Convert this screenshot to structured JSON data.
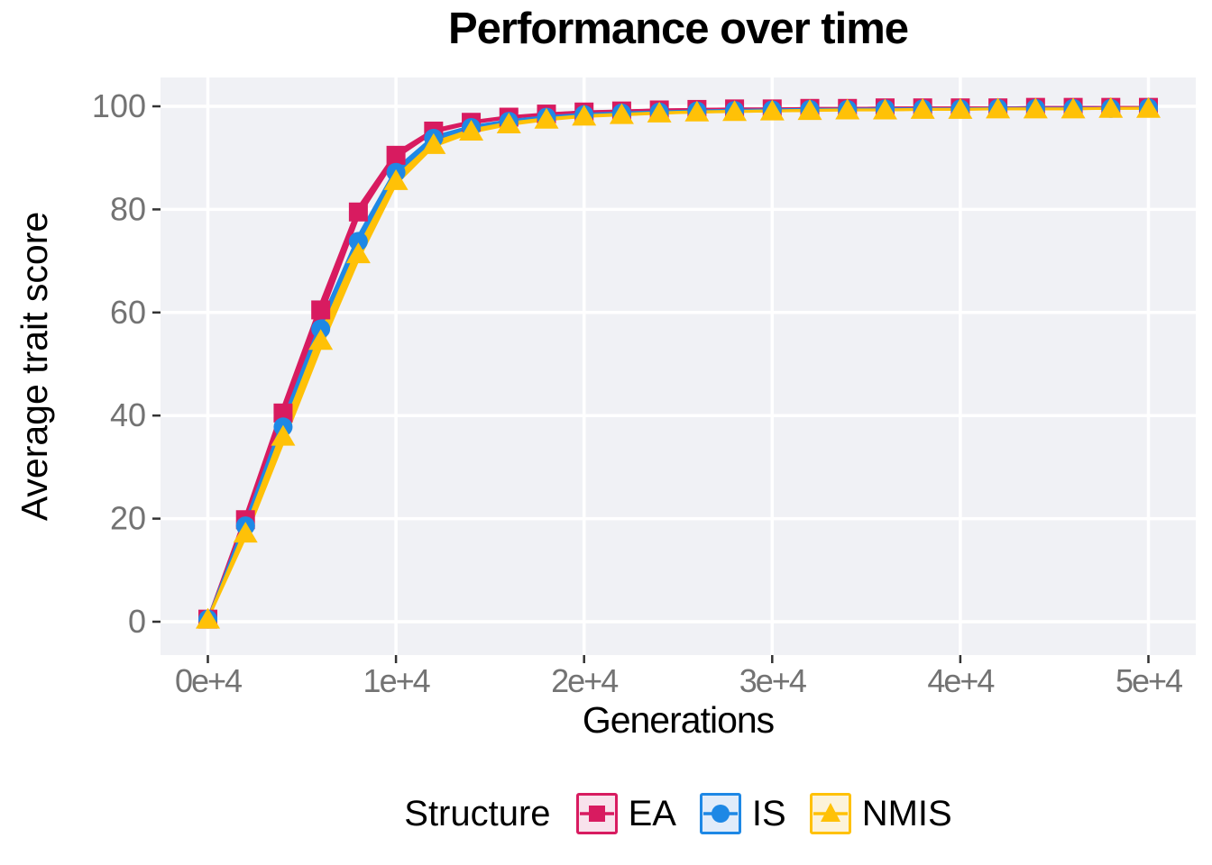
{
  "title": "Performance over time",
  "axes": {
    "x_title": "Generations",
    "y_title": "Average trait score"
  },
  "legend": {
    "title": "Structure"
  },
  "colors": {
    "panel_background": "#F0F1F5",
    "gridline": "#FFFFFF",
    "tick_mark": "#333333",
    "tick_label": "#737373",
    "ea": "#D81B60",
    "is": "#1E88E5",
    "nmis": "#FFC107",
    "ea_key_fill": "#F8E2EC",
    "is_key_fill": "#E1ECFA",
    "nmis_key_fill": "#FCF3DA"
  },
  "chart_data": {
    "type": "line",
    "title": "Performance over time",
    "xlabel": "Generations",
    "ylabel": "Average trait score",
    "legend_title": "Structure",
    "legend_position": "bottom",
    "grid": "major-only",
    "xlim": [
      -2500,
      52500
    ],
    "ylim": [
      -6.5,
      105.6
    ],
    "x_ticks": [
      0,
      10000,
      20000,
      30000,
      40000,
      50000
    ],
    "x_ticklabels": [
      "0e+4",
      "1e+4",
      "2e+4",
      "3e+4",
      "4e+4",
      "5e+4"
    ],
    "y_ticks": [
      0,
      20,
      40,
      60,
      80,
      100
    ],
    "y_ticklabels": [
      "0",
      "20",
      "40",
      "60",
      "80",
      "100"
    ],
    "x": [
      0,
      2000,
      4000,
      6000,
      8000,
      10000,
      12000,
      14000,
      16000,
      18000,
      20000,
      22000,
      24000,
      26000,
      28000,
      30000,
      32000,
      34000,
      36000,
      38000,
      40000,
      42000,
      44000,
      46000,
      48000,
      50000
    ],
    "series": [
      {
        "name": "EA",
        "marker": "square",
        "color": "#D81B60",
        "values": [
          0.5,
          19.8,
          40.5,
          60.5,
          79.5,
          90.5,
          95.2,
          96.9,
          97.9,
          98.5,
          98.9,
          99.1,
          99.3,
          99.4,
          99.5,
          99.5,
          99.6,
          99.6,
          99.7,
          99.7,
          99.7,
          99.7,
          99.8,
          99.8,
          99.8,
          99.8
        ]
      },
      {
        "name": "IS",
        "marker": "circle",
        "color": "#1E88E5",
        "values": [
          0.5,
          18.6,
          37.8,
          56.8,
          73.8,
          87.2,
          93.8,
          95.9,
          97.1,
          97.9,
          98.4,
          98.7,
          98.9,
          99.1,
          99.2,
          99.3,
          99.4,
          99.4,
          99.5,
          99.5,
          99.5,
          99.6,
          99.6,
          99.6,
          99.6,
          99.7
        ]
      },
      {
        "name": "NMIS",
        "marker": "triangle",
        "color": "#FFC107",
        "values": [
          0.5,
          17.2,
          36.0,
          54.6,
          71.4,
          85.6,
          92.6,
          95.2,
          96.6,
          97.5,
          98.1,
          98.4,
          98.7,
          98.9,
          99.0,
          99.1,
          99.2,
          99.3,
          99.3,
          99.4,
          99.4,
          99.5,
          99.5,
          99.5,
          99.6,
          99.6
        ]
      }
    ],
    "replicate_offsets": [
      -1.4,
      -0.55,
      0.55,
      1.4
    ]
  }
}
